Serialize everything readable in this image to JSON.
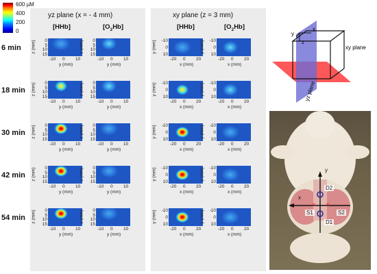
{
  "colorbar": {
    "ticks": [
      "600 µM",
      "400",
      "200",
      "0"
    ]
  },
  "sections": {
    "yz_title": "yz plane (x = - 4 mm)",
    "xy_title": "xy plane (z = 3 mm)",
    "columns": {
      "hhb": "[HHb]",
      "o2hb_prefix": "[O",
      "o2hb_sub": "2",
      "o2hb_suffix": "Hb]"
    }
  },
  "rows": [
    {
      "label": "6 min",
      "hhb_intensity": 0.15,
      "o2hb_intensity": 0.28
    },
    {
      "label": "18 min",
      "hhb_intensity": 0.62,
      "o2hb_intensity": 0.3
    },
    {
      "label": "30 min",
      "hhb_intensity": 0.9,
      "o2hb_intensity": 0.22
    },
    {
      "label": "42 min",
      "hhb_intensity": 0.95,
      "o2hb_intensity": 0.2
    },
    {
      "label": "54 min",
      "hhb_intensity": 1.0,
      "o2hb_intensity": 0.18
    }
  ],
  "yz_axes": {
    "y_ticks": [
      "0",
      "5",
      "10",
      "15"
    ],
    "x_ticks": [
      "-10",
      "0",
      "10"
    ],
    "y_label": "z (mm)",
    "x_label": "y (mm)"
  },
  "xy_axes": {
    "y_ticks": [
      "-10",
      "0",
      "10"
    ],
    "x_ticks": [
      "-20",
      "0",
      "20"
    ],
    "y_label": "y (mm)",
    "x_label": "x (mm)"
  },
  "diagram3d": {
    "axis_y": "y",
    "axis_x": "x",
    "axis_z": "z",
    "xy_plane_label": "xy plane",
    "yz_plane_label": "yz plane",
    "xy_color": "#ff3b3b",
    "yz_color": "#6b6bd6"
  },
  "photo": {
    "axis_y": "y",
    "axis_x": "x",
    "d2": "D2",
    "d1": "D1",
    "s1": "S1",
    "s2": "S2"
  }
}
